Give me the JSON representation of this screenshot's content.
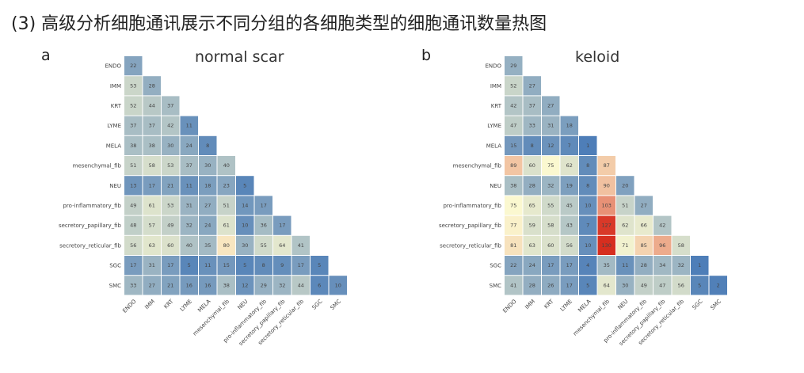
{
  "page": {
    "title": "(3) 高级分析细胞通讯展示不同分组的各细胞类型的细胞通讯数量热图"
  },
  "chart_data": [
    {
      "type": "heatmap",
      "panel": "a",
      "title": "normal scar",
      "rows": [
        "ENDO",
        "IMM",
        "KRT",
        "LYME",
        "MELA",
        "mesenchymal_fib",
        "NEU",
        "pro-inflammatory_fib",
        "secretory_papillary_fib",
        "secretory_reticular_fib",
        "SGC",
        "SMC"
      ],
      "columns": [
        "ENDO",
        "IMM",
        "KRT",
        "LYME",
        "MELA",
        "mesenchymal_fib",
        "NEU",
        "pro-inflammatory_fib",
        "secretory_papillary_fib",
        "secretory_reticular_fib",
        "SGC",
        "SMC"
      ],
      "values": [
        [
          22
        ],
        [
          53,
          28
        ],
        [
          52,
          44,
          37
        ],
        [
          37,
          37,
          42,
          11
        ],
        [
          38,
          38,
          30,
          24,
          8
        ],
        [
          51,
          58,
          53,
          37,
          30,
          40
        ],
        [
          13,
          17,
          21,
          11,
          18,
          23,
          5
        ],
        [
          49,
          61,
          53,
          31,
          27,
          51,
          14,
          17
        ],
        [
          48,
          57,
          49,
          32,
          24,
          61,
          10,
          36,
          17
        ],
        [
          56,
          63,
          60,
          40,
          35,
          80,
          30,
          55,
          64,
          41
        ],
        [
          17,
          31,
          17,
          5,
          11,
          15,
          5,
          8,
          9,
          17,
          5
        ],
        [
          33,
          27,
          21,
          16,
          16,
          38,
          12,
          29,
          32,
          44,
          6,
          10
        ]
      ],
      "color_scale": {
        "min": 0,
        "max": 130,
        "low": "#4a7bb7",
        "mid": "#fbf8d0",
        "high": "#d62e1f"
      }
    },
    {
      "type": "heatmap",
      "panel": "b",
      "title": "keloid",
      "rows": [
        "ENDO",
        "IMM",
        "KRT",
        "LYME",
        "MELA",
        "mesenchymal_fib",
        "NEU",
        "pro-inflammatory_fib",
        "secretory_papillary_fib",
        "secretory_reticular_fib",
        "SGC",
        "SMC"
      ],
      "columns": [
        "ENDO",
        "IMM",
        "KRT",
        "LYME",
        "MELA",
        "mesenchymal_fib",
        "NEU",
        "pro-inflammatory_fib",
        "secretory_papillary_fib",
        "secretory_reticular_fib",
        "SGC",
        "SMC"
      ],
      "values": [
        [
          29
        ],
        [
          52,
          27
        ],
        [
          42,
          37,
          27
        ],
        [
          47,
          33,
          31,
          18
        ],
        [
          15,
          8,
          12,
          7,
          1
        ],
        [
          89,
          60,
          75,
          62,
          8,
          87
        ],
        [
          38,
          28,
          32,
          19,
          8,
          90,
          20
        ],
        [
          75,
          65,
          55,
          45,
          10,
          103,
          51,
          27
        ],
        [
          77,
          59,
          58,
          43,
          7,
          127,
          62,
          66,
          42
        ],
        [
          81,
          63,
          60,
          56,
          10,
          130,
          71,
          85,
          96,
          58
        ],
        [
          22,
          24,
          17,
          17,
          4,
          35,
          11,
          28,
          34,
          32,
          1
        ],
        [
          41,
          28,
          26,
          17,
          5,
          64,
          30,
          49,
          47,
          56,
          5,
          2
        ]
      ],
      "color_scale": {
        "min": 0,
        "max": 130,
        "low": "#4a7bb7",
        "mid": "#fbf8d0",
        "high": "#d62e1f"
      }
    }
  ]
}
